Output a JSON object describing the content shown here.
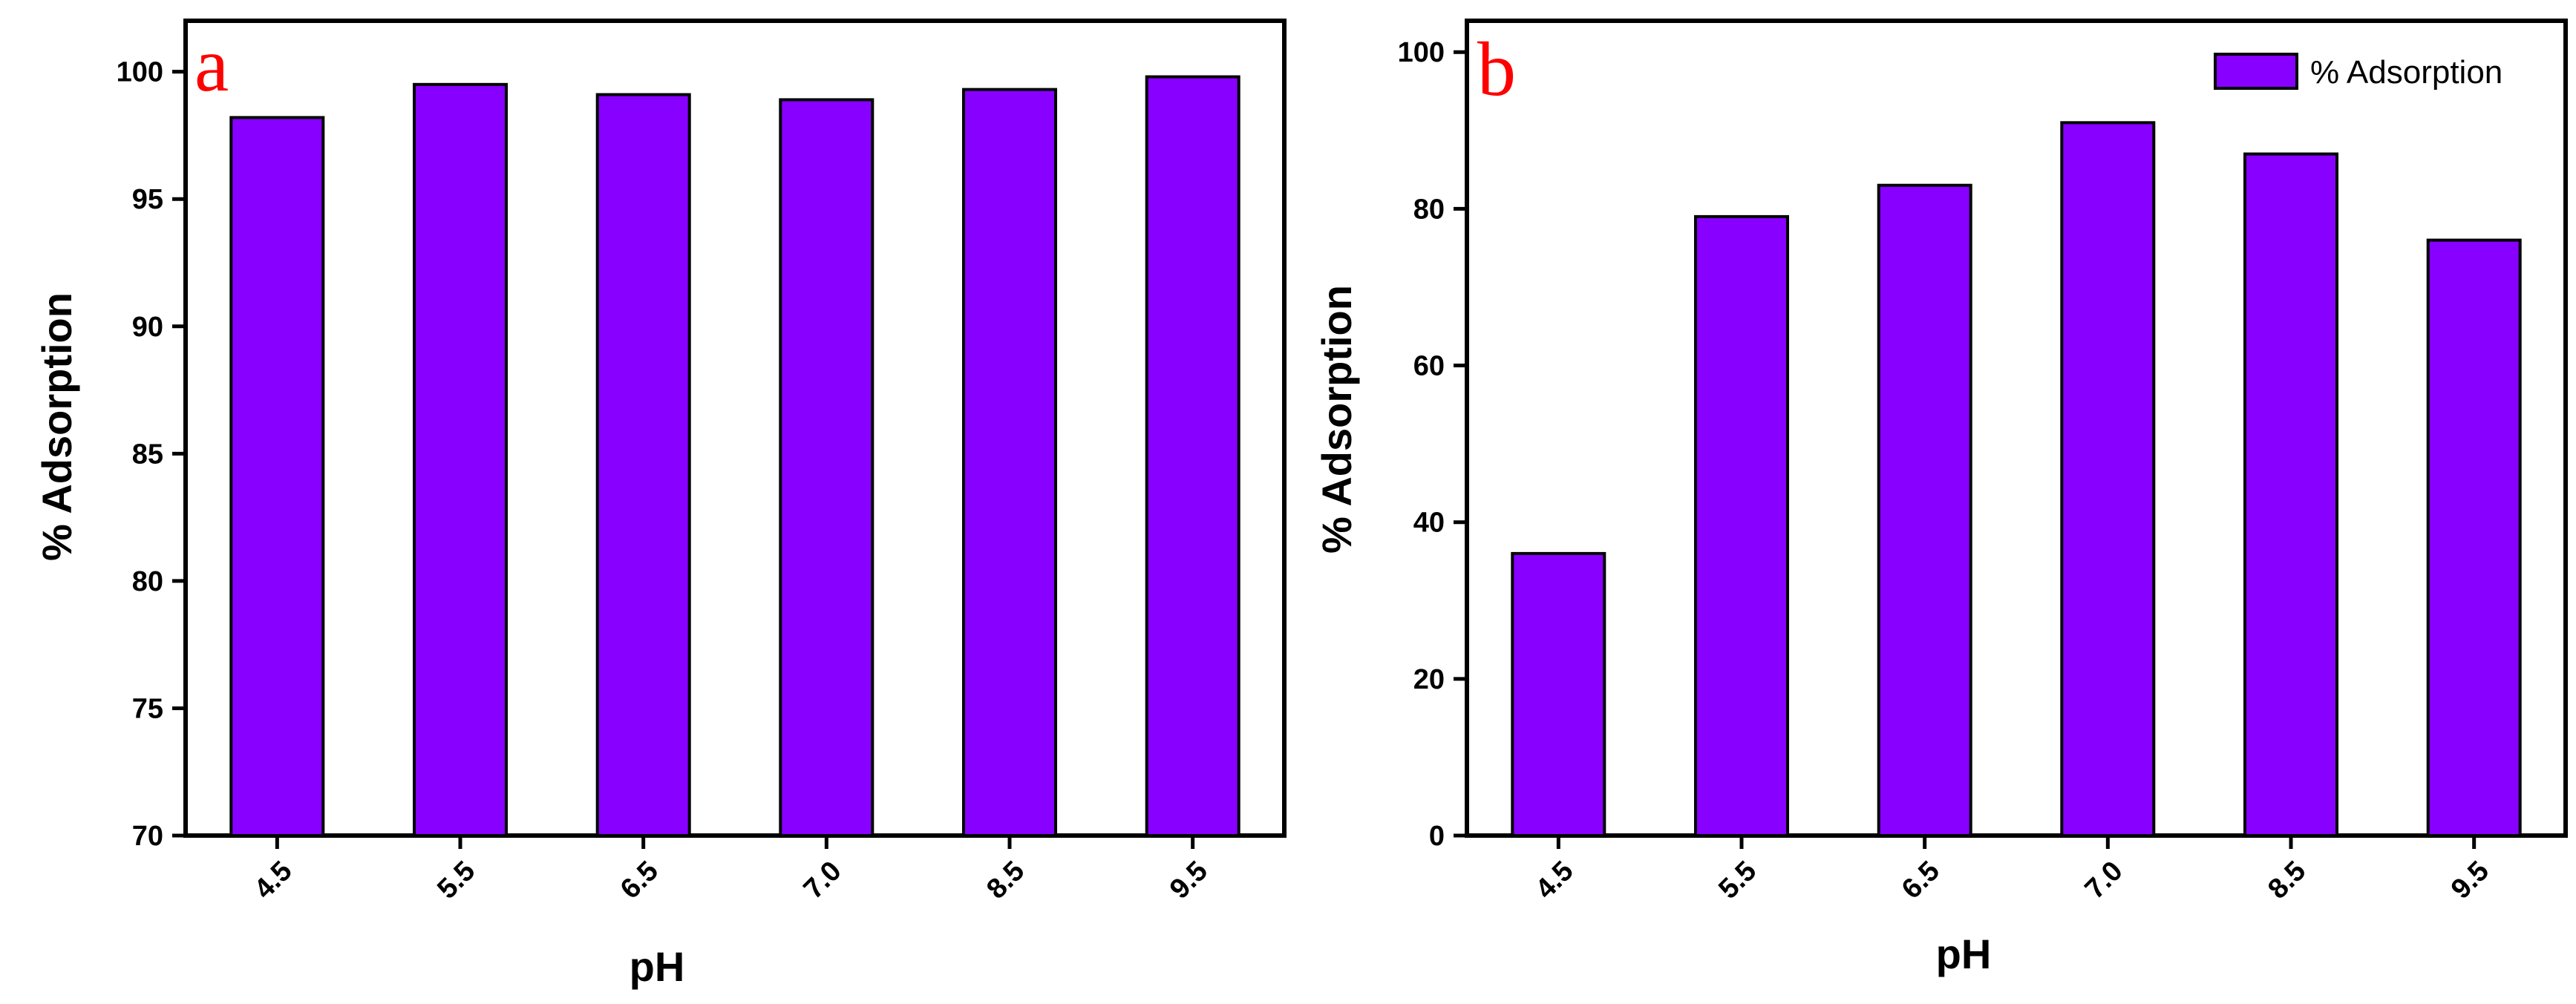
{
  "colors": {
    "bar_fill": "#8800FF",
    "axis": "#000000",
    "panel_label": "#FF0000"
  },
  "chart_data": [
    {
      "type": "bar",
      "panel_label": "a",
      "title": "",
      "categories": [
        "4.5",
        "5.5",
        "6.5",
        "7.0",
        "8.5",
        "9.5"
      ],
      "values": [
        98.2,
        99.5,
        99.1,
        98.9,
        99.3,
        99.8
      ],
      "xlabel": "pH",
      "ylabel": "% Adsorption",
      "ylim": [
        70,
        102
      ],
      "yticks": [
        70,
        75,
        80,
        85,
        90,
        95,
        100
      ],
      "legend": null
    },
    {
      "type": "bar",
      "panel_label": "b",
      "title": "",
      "categories": [
        "4.5",
        "5.5",
        "6.5",
        "7.0",
        "8.5",
        "9.5"
      ],
      "series": [
        {
          "name": "% Adsorption",
          "values": [
            36,
            79,
            83,
            91,
            87,
            76
          ]
        }
      ],
      "values": [
        36,
        79,
        83,
        91,
        87,
        76
      ],
      "xlabel": "pH",
      "ylabel": "% Adsorption",
      "ylim": [
        0,
        104
      ],
      "yticks": [
        0,
        20,
        40,
        60,
        80,
        100
      ],
      "legend": {
        "label": "% Adsorption",
        "position": "top-right"
      }
    }
  ]
}
